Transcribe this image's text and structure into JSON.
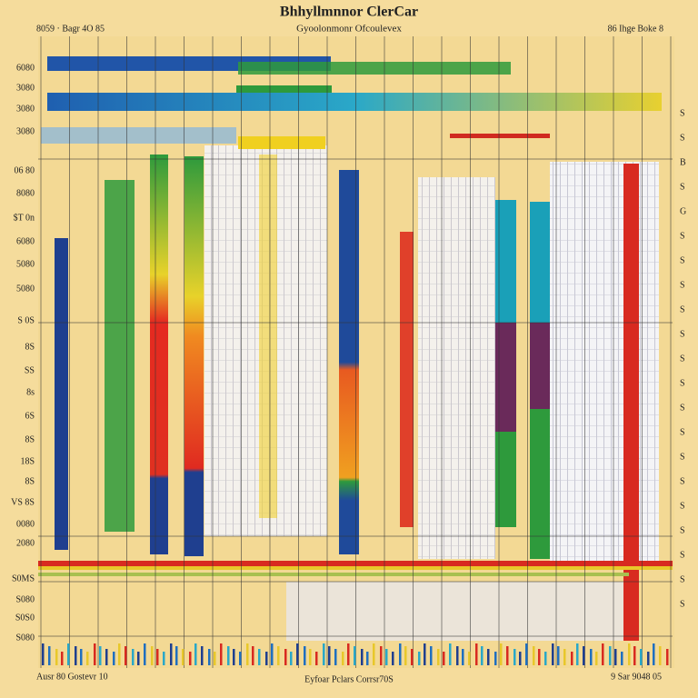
{
  "header": {
    "title": "Bhhyllmnnor ClerCar",
    "subtitle": "Gyoolonmonr Ofcoulevex",
    "top_left": "8059 · Bagr 4O 85",
    "top_right": "86 Ihge Boke 8"
  },
  "footer": {
    "left": "Ausr 80 Gostevr 10",
    "center": "Eyfoar Pclars Corrsr70S",
    "right": "9 Sar 9048 05"
  },
  "left_labels": [
    "6080",
    "3080",
    "3080",
    "3080",
    "06 80",
    "8080",
    "$T 0n",
    "6080",
    "5080",
    "5080",
    "S 0S",
    "8S",
    "SS",
    "8s",
    "6S",
    "8S",
    "18S",
    "8S",
    "VS 8S",
    "0080",
    "2080",
    "S0MS",
    "S080",
    "S0S0",
    "S080"
  ],
  "right_labels": [
    "S",
    "S",
    "B",
    "S",
    "G",
    "S",
    "S",
    "S",
    "S",
    "S",
    "S",
    "S",
    "S",
    "S",
    "S",
    "S",
    "S",
    "S",
    "S",
    "S",
    "S"
  ]
}
